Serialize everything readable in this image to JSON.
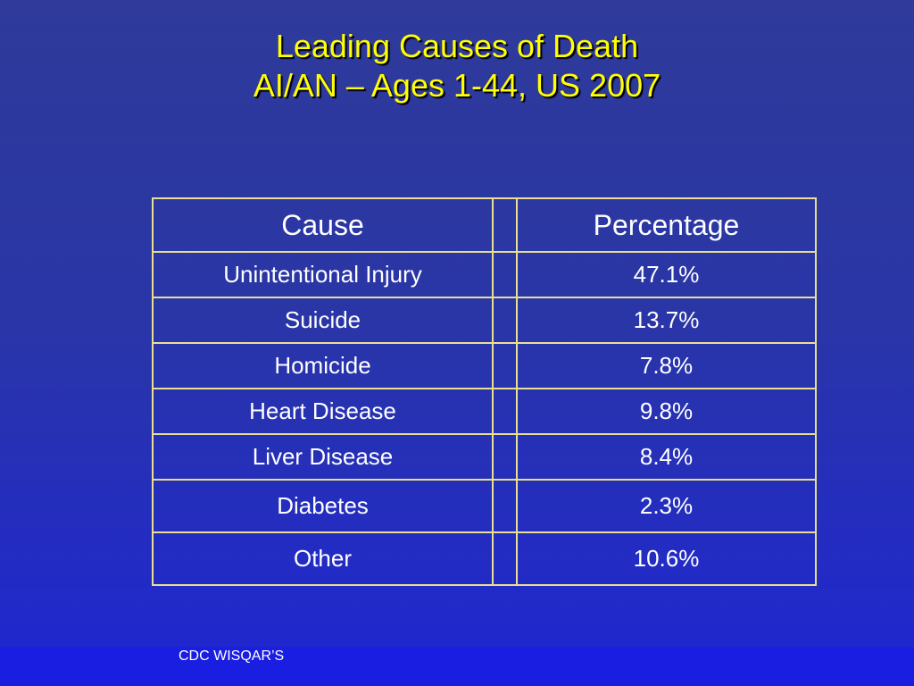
{
  "slide": {
    "title_line1": "Leading Causes of Death",
    "title_line2": "AI/AN – Ages 1-44, US 2007"
  },
  "table": {
    "headers": [
      "Cause",
      "",
      "Percentage"
    ],
    "rows": [
      {
        "cause": "Unintentional Injury",
        "percentage": "47.1%"
      },
      {
        "cause": "Suicide",
        "percentage": "13.7%"
      },
      {
        "cause": "Homicide",
        "percentage": "7.8%"
      },
      {
        "cause": "Heart Disease",
        "percentage": "9.8%"
      },
      {
        "cause": "Liver Disease",
        "percentage": "8.4%"
      },
      {
        "cause": "Diabetes",
        "percentage": "2.3%"
      },
      {
        "cause": "Other",
        "percentage": "10.6%"
      }
    ]
  },
  "footer": {
    "source": "CDC WISQAR’S"
  },
  "colors": {
    "title": "#ffff00",
    "text": "#ffffff",
    "border": "#e8e090",
    "background_top": "#2f3a9a",
    "background_bottom": "#1f26d2"
  }
}
